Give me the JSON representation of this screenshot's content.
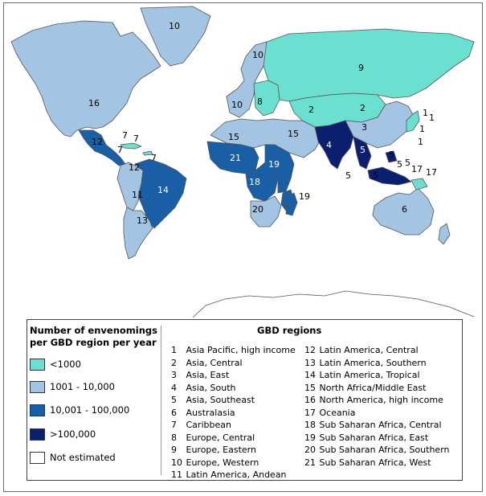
{
  "colors": {
    "lt1000": "#6be0d0",
    "r1001_10000": "#a3c4e2",
    "r10001_100000": "#1a5fa6",
    "gt100000": "#0c1f6e",
    "not_estimated": "#ffffff",
    "border": "#555555"
  },
  "legend": {
    "title": "Number of envenomings per GBD region per year",
    "items": [
      {
        "key": "lt1000",
        "label": "<1000"
      },
      {
        "key": "r1001_10000",
        "label": "1001 - 10,000"
      },
      {
        "key": "r10001_100000",
        "label": "10,001 - 100,000"
      },
      {
        "key": "gt100000",
        "label": ">100,000"
      },
      {
        "key": "not_estimated",
        "label": "Not estimated"
      }
    ]
  },
  "regions": {
    "title": "GBD regions",
    "items": [
      {
        "num": "1",
        "name": "Asia Pacific, high income"
      },
      {
        "num": "2",
        "name": "Asia, Central"
      },
      {
        "num": "3",
        "name": "Asia, East"
      },
      {
        "num": "4",
        "name": "Asia, South"
      },
      {
        "num": "5",
        "name": "Asia, Southeast"
      },
      {
        "num": "6",
        "name": "Australasia"
      },
      {
        "num": "7",
        "name": "Caribbean"
      },
      {
        "num": "8",
        "name": "Europe, Central"
      },
      {
        "num": "9",
        "name": "Europe, Eastern"
      },
      {
        "num": "10",
        "name": "Europe, Western"
      },
      {
        "num": "11",
        "name": "Latin America, Andean"
      },
      {
        "num": "12",
        "name": "Latin America, Central"
      },
      {
        "num": "13",
        "name": "Latin America, Southern"
      },
      {
        "num": "14",
        "name": "Latin America, Tropical"
      },
      {
        "num": "15",
        "name": "North Africa/Middle East"
      },
      {
        "num": "16",
        "name": "North America, high income"
      },
      {
        "num": "17",
        "name": "Oceania"
      },
      {
        "num": "18",
        "name": "Sub Saharan Africa, Central"
      },
      {
        "num": "19",
        "name": "Sub Saharan Africa, East"
      },
      {
        "num": "20",
        "name": "Sub Saharan Africa, Southern"
      },
      {
        "num": "21",
        "name": "Sub Saharan Africa, West"
      }
    ]
  },
  "map_regions": [
    {
      "id": "north-america",
      "region": "16",
      "cls": "r1001_10000"
    },
    {
      "id": "greenland",
      "region": "10",
      "cls": "r1001_10000"
    },
    {
      "id": "central-america",
      "region": "12",
      "cls": "r10001_100000"
    },
    {
      "id": "caribbean",
      "region": "7",
      "cls": "lt1000"
    },
    {
      "id": "andean",
      "region": "11",
      "cls": "r1001_10000"
    },
    {
      "id": "brazil",
      "region": "14",
      "cls": "r10001_100000"
    },
    {
      "id": "southern-cone",
      "region": "13",
      "cls": "r1001_10000"
    },
    {
      "id": "western-europe",
      "region": "10",
      "cls": "r1001_10000"
    },
    {
      "id": "central-europe",
      "region": "8",
      "cls": "lt1000"
    },
    {
      "id": "eastern-europe",
      "region": "9",
      "cls": "lt1000"
    },
    {
      "id": "central-asia",
      "region": "2",
      "cls": "lt1000"
    },
    {
      "id": "north-africa-middle-east",
      "region": "15",
      "cls": "r1001_10000"
    },
    {
      "id": "west-africa",
      "region": "21",
      "cls": "r10001_100000"
    },
    {
      "id": "central-africa",
      "region": "18",
      "cls": "r10001_100000"
    },
    {
      "id": "east-africa",
      "region": "19",
      "cls": "r10001_100000"
    },
    {
      "id": "southern-africa",
      "region": "20",
      "cls": "r1001_10000"
    },
    {
      "id": "east-asia",
      "region": "3",
      "cls": "r1001_10000"
    },
    {
      "id": "south-asia",
      "region": "4",
      "cls": "gt100000"
    },
    {
      "id": "southeast-asia",
      "region": "5",
      "cls": "gt100000"
    },
    {
      "id": "japan-korea",
      "region": "1",
      "cls": "lt1000"
    },
    {
      "id": "australasia",
      "region": "6",
      "cls": "r1001_10000"
    },
    {
      "id": "oceania",
      "region": "17",
      "cls": "lt1000"
    }
  ],
  "map_labels": [
    {
      "text": "10",
      "name": "label-greenland"
    },
    {
      "text": "16",
      "name": "label-north-america"
    },
    {
      "text": "7",
      "name": "label-caribbean-a"
    },
    {
      "text": "7",
      "name": "label-caribbean-b"
    },
    {
      "text": "7",
      "name": "label-caribbean-c"
    },
    {
      "text": "7",
      "name": "label-caribbean-d"
    },
    {
      "text": "12",
      "name": "label-central-america"
    },
    {
      "text": "12",
      "name": "label-central-america-south"
    },
    {
      "text": "11",
      "name": "label-andean"
    },
    {
      "text": "14",
      "name": "label-brazil"
    },
    {
      "text": "13",
      "name": "label-southern-cone"
    },
    {
      "text": "10",
      "name": "label-scandinavia"
    },
    {
      "text": "10",
      "name": "label-western-europe"
    },
    {
      "text": "8",
      "name": "label-central-europe"
    },
    {
      "text": "9",
      "name": "label-eastern-europe"
    },
    {
      "text": "2",
      "name": "label-central-asia-west"
    },
    {
      "text": "2",
      "name": "label-central-asia-east"
    },
    {
      "text": "15",
      "name": "label-north-africa"
    },
    {
      "text": "15",
      "name": "label-middle-east"
    },
    {
      "text": "21",
      "name": "label-west-africa"
    },
    {
      "text": "18",
      "name": "label-central-africa"
    },
    {
      "text": "19",
      "name": "label-east-africa"
    },
    {
      "text": "19",
      "name": "label-madagascar"
    },
    {
      "text": "20",
      "name": "label-southern-africa"
    },
    {
      "text": "3",
      "name": "label-east-asia"
    },
    {
      "text": "4",
      "name": "label-south-asia"
    },
    {
      "text": "5",
      "name": "label-southeast-asia-mainland"
    },
    {
      "text": "5",
      "name": "label-southeast-asia-a"
    },
    {
      "text": "5",
      "name": "label-southeast-asia-b"
    },
    {
      "text": "5",
      "name": "label-southeast-asia-c"
    },
    {
      "text": "5",
      "name": "label-southeast-asia-d"
    },
    {
      "text": "5",
      "name": "label-southeast-asia-e"
    },
    {
      "text": "5",
      "name": "label-southeast-asia-f"
    },
    {
      "text": "1",
      "name": "label-asia-pacific-a"
    },
    {
      "text": "1",
      "name": "label-asia-pacific-b"
    },
    {
      "text": "1",
      "name": "label-asia-pacific-c"
    },
    {
      "text": "1",
      "name": "label-asia-pacific-d"
    },
    {
      "text": "6",
      "name": "label-australia"
    },
    {
      "text": "17",
      "name": "label-oceania-a"
    },
    {
      "text": "17",
      "name": "label-oceania-b"
    }
  ]
}
